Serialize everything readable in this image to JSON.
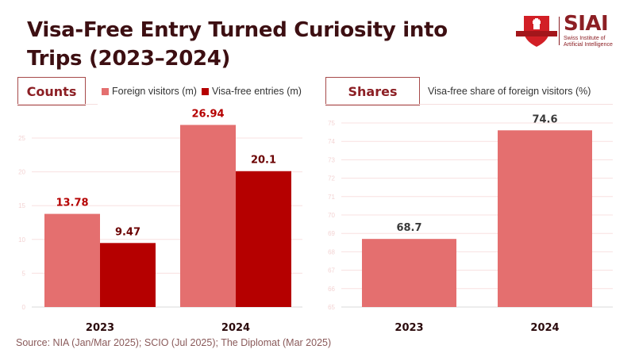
{
  "title": "Visa-Free Entry Turned Curiosity into Trips (2023–2024)",
  "logo": {
    "name": "SIAI",
    "subtitle_line1": "Swiss Institute of",
    "subtitle_line2": "Artificial Intelligence",
    "icon": "swiss-cross-shield-icon"
  },
  "panels": {
    "left": {
      "tab_label": "Counts"
    },
    "right": {
      "tab_label": "Shares"
    }
  },
  "source": "Source: NIA (Jan/Mar 2025); SCIO (Jul 2025); The Diplomat (Mar 2025)",
  "colors": {
    "foreign_visitors": "#e46f6f",
    "visa_free_entries": "#b50000",
    "share_bar": "#e46f6f",
    "label_red": "#b50000",
    "label_maroon": "#6b0000",
    "label_gray": "#3a3a3a",
    "grid": "#f8e0e0",
    "tick": "#f3d3d3",
    "axis": "#d8d8d8"
  },
  "chart_data": [
    {
      "type": "bar",
      "title": "Counts",
      "categories": [
        "2023",
        "2024"
      ],
      "series": [
        {
          "name": "Foreign visitors (m)",
          "values": [
            13.78,
            26.94
          ],
          "labels": [
            "13.78",
            "26.94"
          ]
        },
        {
          "name": "Visa-free entries (m)",
          "values": [
            9.47,
            20.1
          ],
          "labels": [
            "9.47",
            "20.1"
          ]
        }
      ],
      "xlabel": "",
      "ylabel": "",
      "ylim": [
        0,
        25
      ],
      "yticks": [
        0,
        5,
        10,
        15,
        20,
        25
      ],
      "grid": true,
      "legend": "top"
    },
    {
      "type": "bar",
      "title": "Shares",
      "subtitle": "Visa-free share of foreign visitors (%)",
      "categories": [
        "2023",
        "2024"
      ],
      "series": [
        {
          "name": "Visa-free share of foreign visitors (%)",
          "values": [
            68.7,
            74.6
          ],
          "labels": [
            "68.7",
            "74.6"
          ]
        }
      ],
      "xlabel": "",
      "ylabel": "",
      "ylim": [
        65,
        75
      ],
      "yticks": [
        65,
        66,
        67,
        68,
        69,
        70,
        71,
        72,
        73,
        74,
        75
      ],
      "grid": true,
      "legend": "top"
    }
  ]
}
